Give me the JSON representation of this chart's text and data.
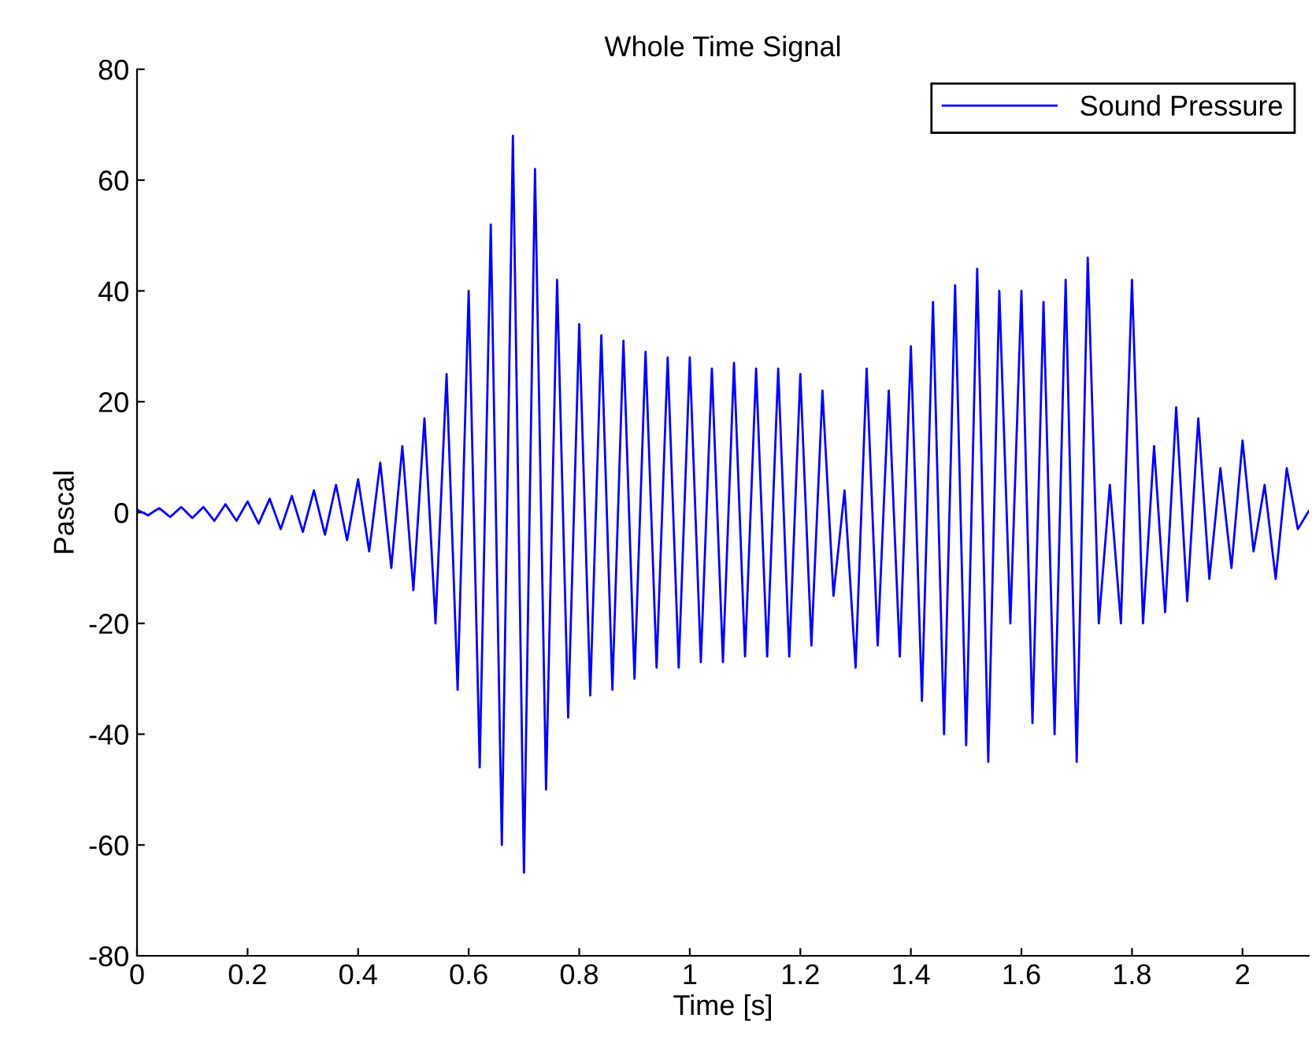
{
  "chart_data": {
    "type": "line",
    "title": "Whole Time Signal",
    "xlabel": "Time [s]",
    "ylabel": "Pascal",
    "xlim": [
      0,
      2.12
    ],
    "ylim": [
      -80,
      80
    ],
    "xticks": [
      0,
      0.2,
      0.4,
      0.6,
      0.8,
      1,
      1.2,
      1.4,
      1.6,
      1.8,
      2
    ],
    "yticks": [
      -80,
      -60,
      -40,
      -20,
      0,
      20,
      40,
      60,
      80
    ],
    "grid": false,
    "legend": "top right",
    "marker": "none",
    "line_style": "solid",
    "x": [
      0,
      0.02,
      0.04,
      0.06,
      0.08,
      0.1,
      0.12,
      0.14,
      0.16,
      0.18,
      0.2,
      0.22,
      0.24,
      0.26,
      0.28,
      0.3,
      0.32,
      0.34,
      0.36,
      0.38,
      0.4,
      0.42,
      0.44,
      0.46,
      0.48,
      0.5,
      0.52,
      0.54,
      0.56,
      0.58,
      0.6,
      0.62,
      0.64,
      0.66,
      0.68,
      0.7,
      0.72,
      0.74,
      0.76,
      0.78,
      0.8,
      0.82,
      0.84,
      0.86,
      0.88,
      0.9,
      0.92,
      0.94,
      0.96,
      0.98,
      1,
      1.02,
      1.04,
      1.06,
      1.08,
      1.1,
      1.12,
      1.14,
      1.16,
      1.18,
      1.2,
      1.22,
      1.24,
      1.26,
      1.28,
      1.3,
      1.32,
      1.34,
      1.36,
      1.38,
      1.4,
      1.42,
      1.44,
      1.46,
      1.48,
      1.5,
      1.52,
      1.54,
      1.56,
      1.58,
      1.6,
      1.62,
      1.64,
      1.66,
      1.68,
      1.7,
      1.72,
      1.74,
      1.76,
      1.78,
      1.8,
      1.82,
      1.84,
      1.86,
      1.88,
      1.9,
      1.92,
      1.94,
      1.96,
      1.98,
      2,
      2.02,
      2.04,
      2.06,
      2.08,
      2.1,
      2.12
    ],
    "series": [
      {
        "name": "Sound Pressure",
        "color": "#0000ff",
        "values": [
          0.5,
          -0.5,
          0.8,
          -0.8,
          1,
          -1,
          1,
          -1.5,
          1.5,
          -1.5,
          2,
          -2,
          2.5,
          -3,
          3,
          -3.5,
          4,
          -4,
          5,
          -5,
          6,
          -7,
          9,
          -10,
          12,
          -14,
          17,
          -20,
          25,
          -32,
          40,
          -46,
          52,
          -60,
          68,
          -65,
          62,
          -50,
          42,
          -37,
          34,
          -33,
          32,
          -32,
          31,
          -30,
          29,
          -28,
          28,
          -28,
          28,
          -27,
          26,
          -27,
          27,
          -26,
          26,
          -26,
          26,
          -26,
          25,
          -24,
          22,
          -15,
          4,
          -28,
          26,
          -24,
          22,
          -26,
          30,
          -34,
          38,
          -40,
          41,
          -42,
          44,
          -45,
          40,
          -20,
          40,
          -38,
          38,
          -40,
          42,
          -45,
          46,
          -20,
          5,
          -20,
          42,
          -20,
          12,
          -18,
          19,
          -16,
          17,
          -12,
          8,
          -10,
          13,
          -7,
          5,
          -12,
          8,
          -3,
          0.3
        ]
      }
    ]
  }
}
